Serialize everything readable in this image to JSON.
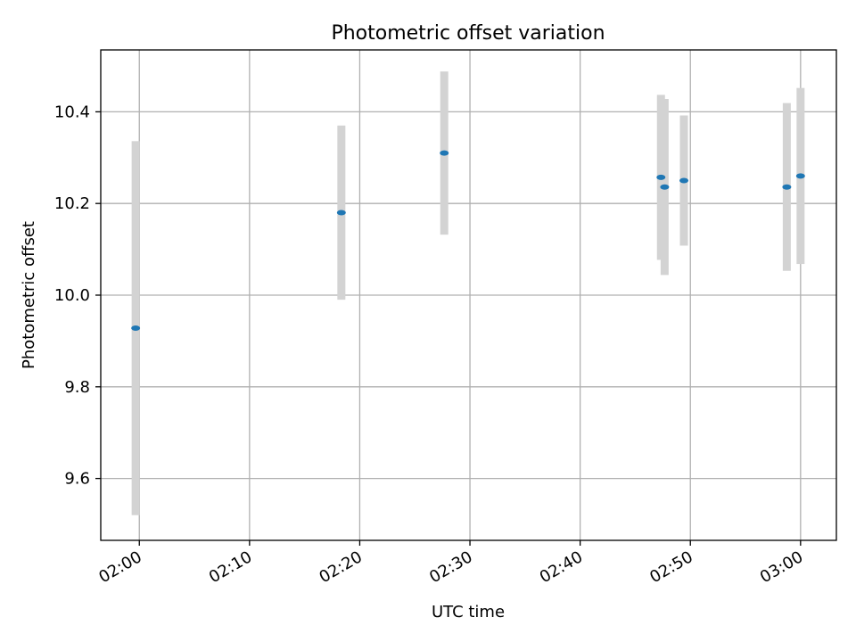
{
  "chart_data": {
    "type": "scatter",
    "title": "Photometric offset variation",
    "xlabel": "UTC time",
    "ylabel": "Photometric offset",
    "x_ticks": [
      "02:00",
      "02:10",
      "02:20",
      "02:30",
      "02:40",
      "02:50",
      "03:00"
    ],
    "y_ticks": [
      "9.6",
      "9.8",
      "10.0",
      "10.2",
      "10.4"
    ],
    "xlim": [
      "01:56:30",
      "03:03:15"
    ],
    "ylim": [
      9.465,
      10.535
    ],
    "grid": true,
    "colors": {
      "point": "#1f77b4",
      "errorbar": "#d3d3d3",
      "grid": "#b0b0b0"
    },
    "series": [
      {
        "points": [
          {
            "x": "01:59:40",
            "y": 9.928,
            "err": 0.408
          },
          {
            "x": "02:18:20",
            "y": 10.18,
            "err": 0.19
          },
          {
            "x": "02:27:40",
            "y": 10.31,
            "err": 0.178
          },
          {
            "x": "02:47:20",
            "y": 10.257,
            "err": 0.18
          },
          {
            "x": "02:47:40",
            "y": 10.236,
            "err": 0.192
          },
          {
            "x": "02:49:25",
            "y": 10.25,
            "err": 0.142
          },
          {
            "x": "02:58:45",
            "y": 10.236,
            "err": 0.183
          },
          {
            "x": "03:00:00",
            "y": 10.26,
            "err": 0.192
          }
        ]
      }
    ]
  }
}
